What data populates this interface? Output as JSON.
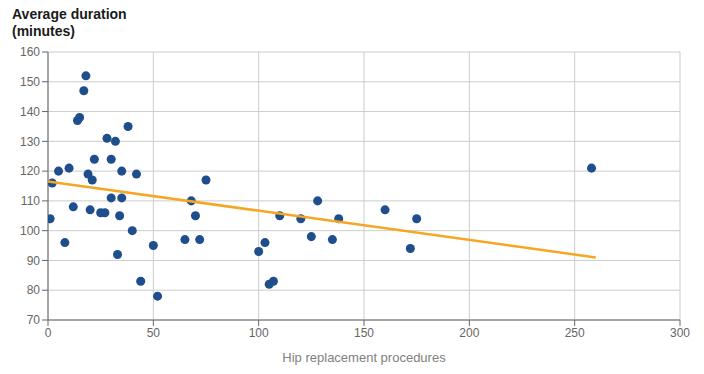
{
  "chart_data": {
    "type": "scatter",
    "x_label": "Hip replacement procedures",
    "y_label": "Average duration\n(minutes)",
    "series": [
      {
        "type": "scatter",
        "color": "#1f4e8c",
        "x": [
          1,
          2,
          5,
          8,
          10,
          12,
          14,
          15,
          17,
          18,
          19,
          20,
          21,
          22,
          25,
          27,
          28,
          30,
          30,
          32,
          33,
          34,
          35,
          35,
          38,
          40,
          42,
          44,
          50,
          52,
          65,
          68,
          70,
          72,
          75,
          100,
          103,
          105,
          107,
          110,
          120,
          125,
          128,
          135,
          138,
          160,
          172,
          175,
          258
        ],
        "values": [
          104,
          116,
          120,
          96,
          121,
          108,
          137,
          138,
          147,
          152,
          119,
          107,
          117,
          124,
          106,
          106,
          131,
          111,
          124,
          130,
          92,
          105,
          111,
          120,
          135,
          100,
          119,
          83,
          95,
          78,
          97,
          110,
          105,
          97,
          117,
          93,
          96,
          82,
          83,
          105,
          104,
          98,
          110,
          97,
          104,
          107,
          94,
          104,
          121
        ]
      },
      {
        "type": "line",
        "color": "#f5a623",
        "x": [
          0,
          260
        ],
        "values": [
          116.5,
          91
        ]
      }
    ],
    "xlim": [
      0,
      300
    ],
    "ylim": [
      70,
      160
    ],
    "xticks": [
      0,
      50,
      100,
      150,
      200,
      250,
      300
    ],
    "yticks": [
      70,
      80,
      90,
      100,
      110,
      120,
      130,
      140,
      150,
      160
    ],
    "grid": true
  }
}
